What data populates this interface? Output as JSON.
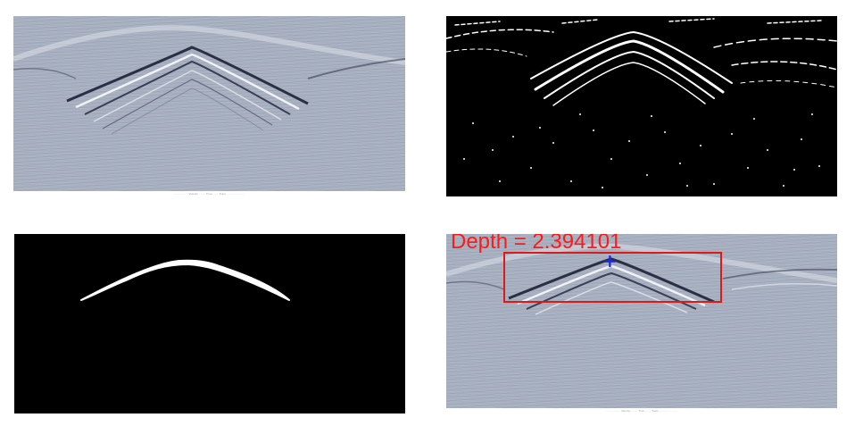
{
  "panels": {
    "original": {
      "caption": "................... Velocity ......... Time ........ Trace ........................"
    },
    "binary_edges": {},
    "hyperbola_mask": {},
    "detection": {
      "depth_label": "Depth = 2.394101",
      "caption": "................... Velocity ......... Time ........ Trace ........................",
      "box_color": "#e01818",
      "marker_color": "#1e2bd8"
    }
  },
  "colors": {
    "gpr_background": "#a7b0c0",
    "binary_background": "#000000",
    "mask_foreground": "#ffffff"
  }
}
